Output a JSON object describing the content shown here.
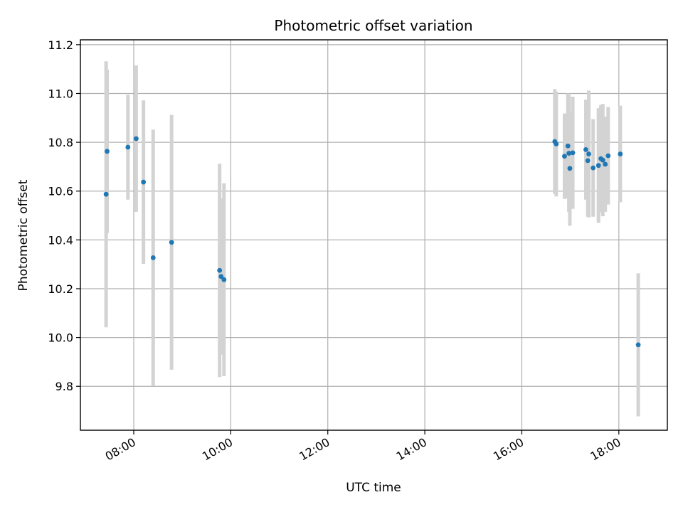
{
  "chart_data": {
    "type": "scatter",
    "title": "Photometric offset variation",
    "xlabel": "UTC time",
    "ylabel": "Photometric offset",
    "x_unit": "hours UTC",
    "xlim": [
      6.9,
      19.0
    ],
    "ylim": [
      9.62,
      11.22
    ],
    "x_ticks": [
      {
        "value": 8,
        "label": "08:00"
      },
      {
        "value": 10,
        "label": "10:00"
      },
      {
        "value": 12,
        "label": "12:00"
      },
      {
        "value": 14,
        "label": "14:00"
      },
      {
        "value": 16,
        "label": "16:00"
      },
      {
        "value": 18,
        "label": "18:00"
      }
    ],
    "y_ticks": [
      {
        "value": 9.8,
        "label": "9.8"
      },
      {
        "value": 10.0,
        "label": "10.0"
      },
      {
        "value": 10.2,
        "label": "10.2"
      },
      {
        "value": 10.4,
        "label": "10.4"
      },
      {
        "value": 10.6,
        "label": "10.6"
      },
      {
        "value": 10.8,
        "label": "10.8"
      },
      {
        "value": 11.0,
        "label": "11.0"
      },
      {
        "value": 11.2,
        "label": "11.2"
      }
    ],
    "grid": true,
    "point_color": "#1f77b4",
    "errorbar_color": "#d3d3d3",
    "points": [
      {
        "x": 7.43,
        "y": 10.587,
        "err": 0.545
      },
      {
        "x": 7.45,
        "y": 10.763,
        "err": 0.335
      },
      {
        "x": 7.88,
        "y": 10.78,
        "err": 0.215
      },
      {
        "x": 8.05,
        "y": 10.815,
        "err": 0.3
      },
      {
        "x": 8.2,
        "y": 10.637,
        "err": 0.335
      },
      {
        "x": 8.4,
        "y": 10.327,
        "err": 0.525
      },
      {
        "x": 8.78,
        "y": 10.39,
        "err": 0.522
      },
      {
        "x": 9.77,
        "y": 10.275,
        "err": 0.437
      },
      {
        "x": 9.8,
        "y": 10.25,
        "err": 0.32
      },
      {
        "x": 9.86,
        "y": 10.237,
        "err": 0.395
      },
      {
        "x": 16.68,
        "y": 10.803,
        "err": 0.215
      },
      {
        "x": 16.71,
        "y": 10.793,
        "err": 0.215
      },
      {
        "x": 16.88,
        "y": 10.743,
        "err": 0.175
      },
      {
        "x": 16.95,
        "y": 10.785,
        "err": 0.215
      },
      {
        "x": 16.97,
        "y": 10.755,
        "err": 0.24
      },
      {
        "x": 16.99,
        "y": 10.693,
        "err": 0.235
      },
      {
        "x": 17.05,
        "y": 10.757,
        "err": 0.23
      },
      {
        "x": 17.32,
        "y": 10.77,
        "err": 0.205
      },
      {
        "x": 17.36,
        "y": 10.725,
        "err": 0.23
      },
      {
        "x": 17.38,
        "y": 10.752,
        "err": 0.26
      },
      {
        "x": 17.47,
        "y": 10.695,
        "err": 0.2
      },
      {
        "x": 17.58,
        "y": 10.705,
        "err": 0.235
      },
      {
        "x": 17.63,
        "y": 10.733,
        "err": 0.22
      },
      {
        "x": 17.67,
        "y": 10.727,
        "err": 0.23
      },
      {
        "x": 17.72,
        "y": 10.71,
        "err": 0.195
      },
      {
        "x": 17.78,
        "y": 10.745,
        "err": 0.2
      },
      {
        "x": 18.03,
        "y": 10.752,
        "err": 0.198
      },
      {
        "x": 18.4,
        "y": 9.97,
        "err": 0.293
      }
    ]
  }
}
